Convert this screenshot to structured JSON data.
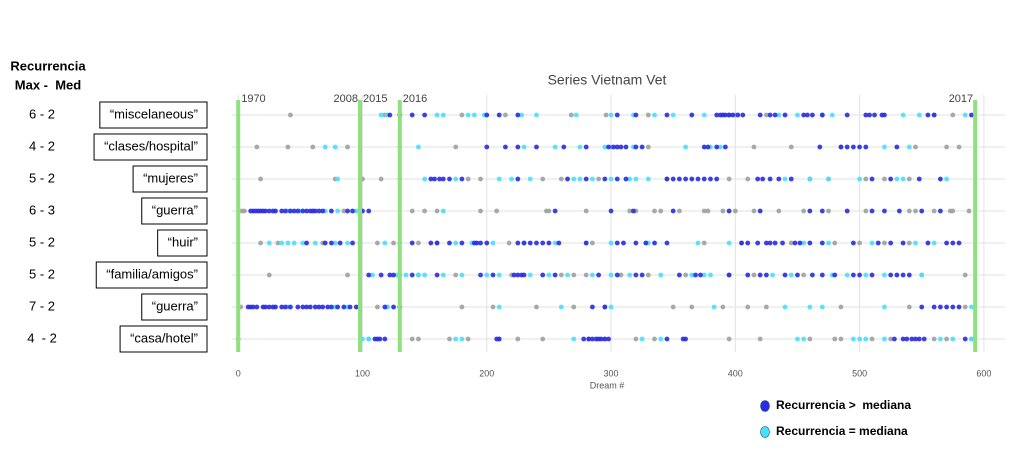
{
  "header": {
    "line1": "Recurrencia",
    "line2": "Max -  Med"
  },
  "chart_data": {
    "type": "strip",
    "title": "Series Vietnam Vet",
    "x_label": "Dream #",
    "categories": [
      "“miscelaneous”",
      "“clases/hospital”",
      "“mujeres”",
      "“guerra”",
      "“huir”",
      "“familia/amigos”",
      "“guerra”",
      "“casa/hotel”"
    ],
    "recurrence": [
      "6 - 2",
      "4 - 2",
      "5 - 2",
      "6 - 3",
      "5 - 2",
      "5 - 2",
      "7 - 2",
      "4  - 2"
    ],
    "xlim": [
      -5,
      617
    ],
    "xticks": [
      0,
      100,
      200,
      300,
      400,
      500,
      600
    ],
    "grid": true,
    "period_lines": [
      0,
      98,
      130,
      593
    ],
    "period_labels": [
      {
        "x": 0,
        "label": "1970"
      },
      {
        "x": 98,
        "label": "2008"
      },
      {
        "x": 98,
        "label": "2015"
      },
      {
        "x": 130,
        "label": "2016"
      },
      {
        "x": 593,
        "label": "2017"
      }
    ],
    "series": [
      {
        "color": "#a0a0a0",
        "values": [
          [
            42,
            118,
            180,
            215,
            268,
            296,
            330,
            395,
            425,
            470,
            575
          ],
          [
            15,
            40,
            60,
            88,
            130,
            175,
            330,
            415,
            445,
            485,
            545,
            570,
            580
          ],
          [
            18,
            78,
            100,
            115,
            130,
            185,
            195,
            245,
            260,
            290,
            345,
            395,
            410,
            460,
            475,
            505,
            520,
            540
          ],
          [
            3,
            5,
            85,
            140,
            150,
            160,
            195,
            208,
            248,
            250,
            280,
            315,
            320,
            335,
            340,
            355,
            375,
            378,
            390,
            400,
            415,
            435,
            455,
            475,
            505,
            540,
            545,
            560,
            573,
            575,
            588
          ],
          [
            18,
            32,
            68,
            112,
            125,
            130,
            145,
            160,
            218,
            285,
            375,
            405,
            445,
            480,
            500,
            520,
            540
          ],
          [
            25,
            88,
            130,
            145,
            175,
            220,
            260,
            270,
            280,
            308,
            330,
            360,
            395,
            415,
            455,
            550,
            585
          ],
          [
            2,
            112,
            120,
            180,
            205,
            240,
            270,
            295,
            350,
            365,
            390,
            410,
            425,
            485,
            540,
            585
          ],
          [
            0,
            105,
            140,
            145,
            170,
            185,
            225,
            245,
            282,
            320,
            335,
            395,
            420,
            460,
            480,
            485,
            510,
            525,
            560,
            570,
            590
          ]
        ]
      },
      {
        "name": "Recurrencia = mediana",
        "color": "#46e0ff",
        "values": [
          [
            115,
            120,
            160,
            165,
            185,
            190,
            198,
            228,
            240,
            272,
            300,
            318,
            335,
            350,
            375,
            400,
            435,
            450,
            470,
            478,
            535,
            548,
            560,
            585
          ],
          [
            70,
            78,
            145,
            230,
            255,
            275,
            295,
            300,
            318,
            360,
            380,
            388,
            520,
            540
          ],
          [
            80,
            150,
            175,
            210,
            220,
            235,
            270,
            275,
            285,
            300,
            315,
            320,
            330,
            440,
            460,
            475,
            500,
            530,
            535,
            570
          ],
          [
            40,
            50,
            70,
            80,
            95,
            98,
            165
          ],
          [
            25,
            35,
            40,
            45,
            52,
            62,
            78,
            88,
            98,
            118,
            175,
            188,
            205,
            230,
            255,
            280,
            300,
            330,
            370,
            395,
            455,
            475,
            510,
            545,
            560
          ],
          [
            108,
            128,
            135,
            145,
            150,
            165,
            180,
            200,
            210,
            235,
            250,
            265,
            285,
            300,
            315,
            340,
            365,
            375,
            380,
            430,
            445,
            478,
            490,
            505,
            520,
            550
          ],
          [
            40,
            78,
            88,
            120,
            210,
            260,
            300,
            383,
            440,
            460,
            470,
            520,
            590
          ],
          [
            100,
            105,
            175,
            180,
            210,
            270,
            295,
            325,
            340,
            450,
            455,
            495,
            500,
            505,
            520,
            565,
            575,
            590
          ]
        ]
      },
      {
        "name": "Recurrencia >  mediana",
        "color": "#2a2ae8",
        "values": [
          [
            122,
            130,
            140,
            150,
            200,
            210,
            225,
            305,
            320,
            345,
            365,
            385,
            388,
            390,
            392,
            395,
            398,
            402,
            406,
            420,
            428,
            432,
            440,
            455,
            458,
            462,
            470,
            490,
            505,
            508,
            512,
            518,
            520,
            555,
            560,
            590
          ],
          [
            200,
            215,
            225,
            240,
            262,
            280,
            298,
            302,
            305,
            308,
            312,
            320,
            325,
            375,
            378,
            385,
            392,
            468,
            485,
            490,
            495,
            500,
            505,
            530
          ],
          [
            155,
            158,
            162,
            165,
            170,
            180,
            225,
            265,
            280,
            295,
            305,
            312,
            345,
            350,
            355,
            360,
            365,
            370,
            375,
            380,
            385,
            418,
            422,
            428,
            435,
            445,
            510,
            525,
            548,
            565
          ],
          [
            10,
            12,
            14,
            16,
            18,
            20,
            22,
            25,
            28,
            30,
            35,
            38,
            42,
            45,
            48,
            52,
            55,
            58,
            60,
            62,
            65,
            68,
            75,
            88,
            92,
            100,
            105,
            255,
            300,
            318,
            350,
            395,
            420,
            460,
            470,
            490,
            510,
            520,
            532,
            550,
            565
          ],
          [
            55,
            70,
            75,
            82,
            92,
            140,
            155,
            160,
            170,
            180,
            190,
            192,
            195,
            200,
            225,
            230,
            235,
            240,
            245,
            250,
            258,
            280,
            305,
            310,
            320,
            328,
            335,
            345,
            405,
            410,
            418,
            425,
            428,
            432,
            438,
            448,
            452,
            460,
            470,
            495,
            515,
            525,
            535,
            555,
            570,
            575,
            580
          ],
          [
            105,
            115,
            122,
            125,
            140,
            160,
            195,
            205,
            222,
            225,
            228,
            230,
            245,
            255,
            290,
            305,
            320,
            325,
            355,
            368,
            372,
            395,
            410,
            420,
            425,
            440,
            450,
            462,
            470,
            480,
            495,
            500,
            510,
            525,
            530,
            535,
            540
          ],
          [
            8,
            10,
            12,
            15,
            20,
            22,
            25,
            28,
            30,
            35,
            38,
            42,
            48,
            52,
            55,
            58,
            62,
            65,
            68,
            72,
            75,
            80,
            85,
            90,
            95,
            118,
            125,
            130,
            285,
            295,
            550,
            560,
            565,
            570,
            575,
            580
          ],
          [
            110,
            112,
            114,
            118,
            208,
            210,
            278,
            282,
            285,
            288,
            290,
            292,
            295,
            298,
            345,
            358,
            360,
            528,
            535,
            538,
            542,
            545,
            548,
            552,
            585
          ]
        ]
      }
    ]
  }
}
